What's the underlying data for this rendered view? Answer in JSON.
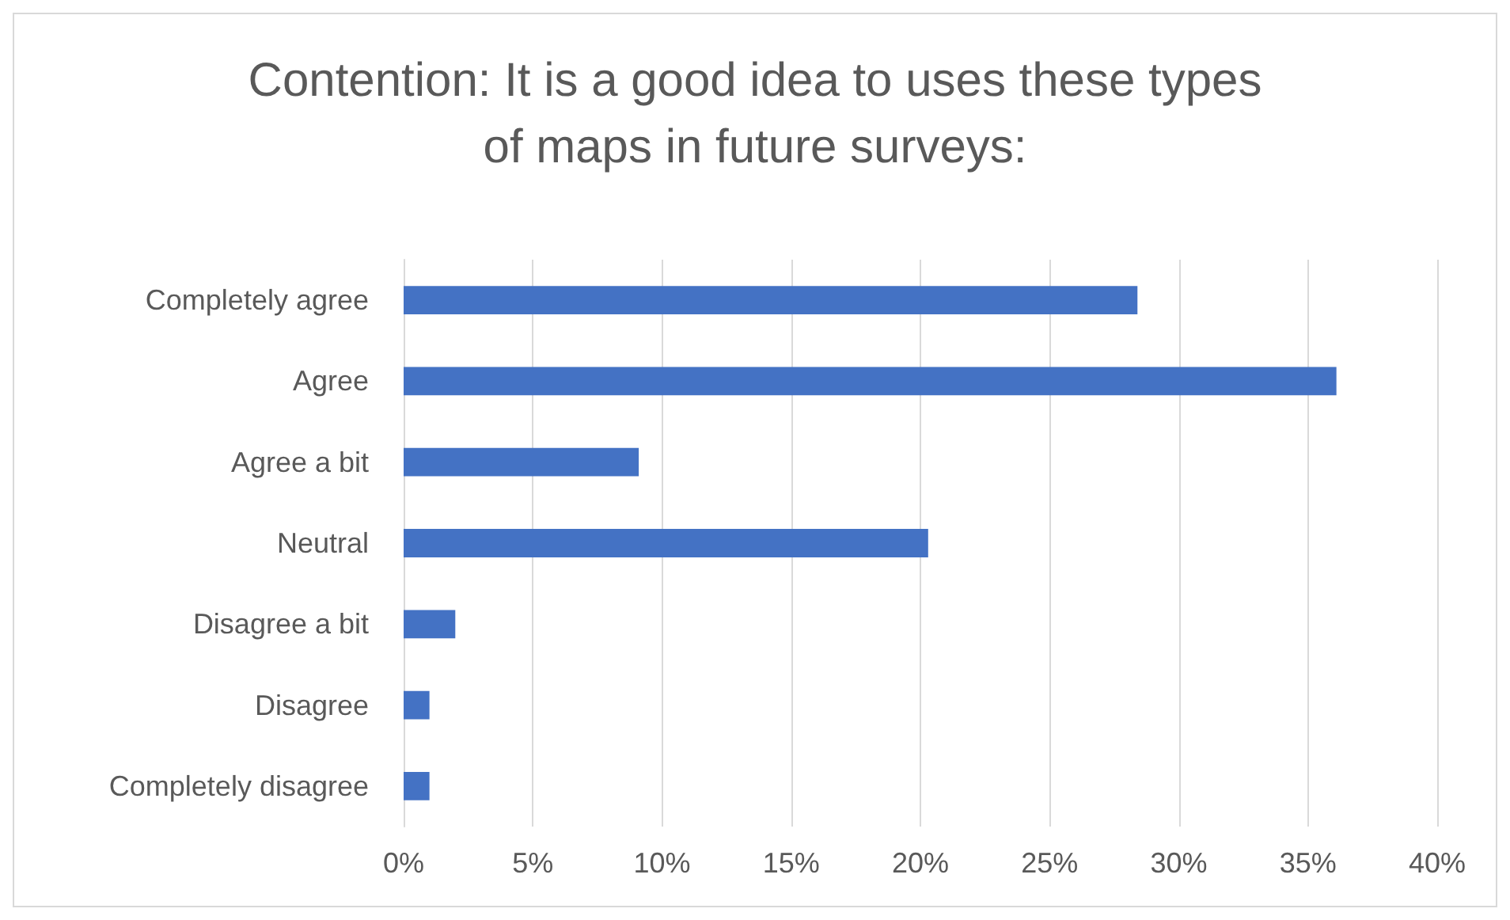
{
  "chart_data": {
    "type": "bar",
    "orientation": "horizontal",
    "title": "Contention: It is a good idea to uses these types\nof maps in future surveys:",
    "categories": [
      "Completely agree",
      "Agree",
      "Agree a bit",
      "Neutral",
      "Disagree a bit",
      "Disagree",
      "Completely disagree"
    ],
    "values": [
      28.4,
      36.1,
      9.1,
      20.3,
      2.0,
      1.0,
      1.0
    ],
    "color": "#4472c4",
    "xlim": [
      0,
      40
    ],
    "xticks": [
      {
        "value": 0,
        "label": "0%"
      },
      {
        "value": 5,
        "label": "5%"
      },
      {
        "value": 10,
        "label": "10%"
      },
      {
        "value": 15,
        "label": "15%"
      },
      {
        "value": 20,
        "label": "20%"
      },
      {
        "value": 25,
        "label": "25%"
      },
      {
        "value": 30,
        "label": "30%"
      },
      {
        "value": 35,
        "label": "35%"
      },
      {
        "value": 40,
        "label": "40%"
      }
    ],
    "grid": "x"
  }
}
